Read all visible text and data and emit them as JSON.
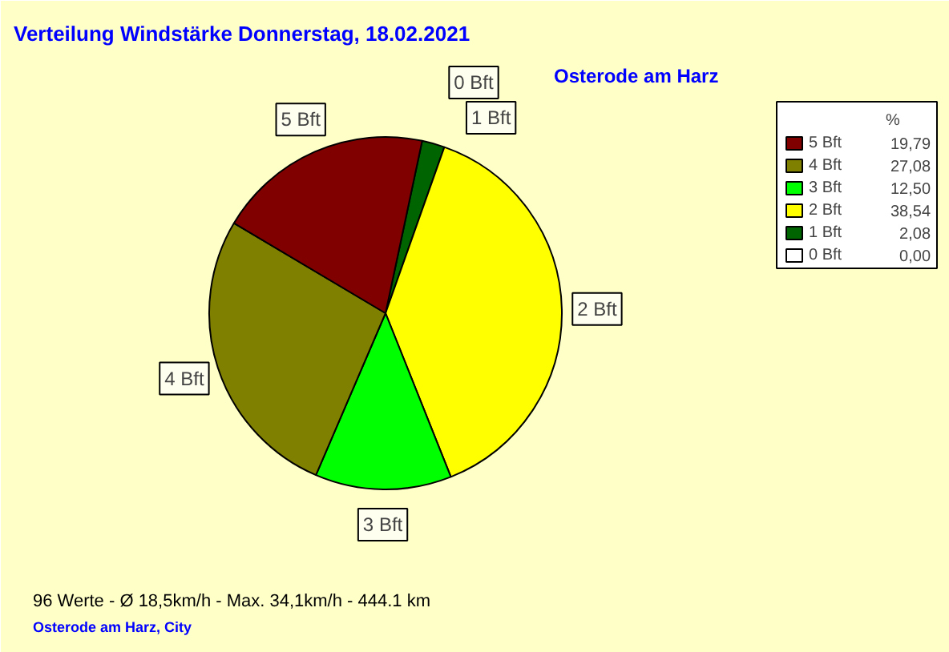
{
  "chart_data": {
    "type": "pie",
    "title": "Verteilung Windstärke  Donnerstag, 18.02.2021",
    "subtitle": "Osterode am Harz",
    "legend_title": "%",
    "legend": "right",
    "categories": [
      "0 Bft",
      "1 Bft",
      "2 Bft",
      "3 Bft",
      "4 Bft",
      "5 Bft"
    ],
    "values": [
      0.0,
      2.08,
      38.54,
      12.5,
      27.08,
      19.79
    ],
    "value_labels": [
      "0,00",
      "2,08",
      "38,54",
      "12,50",
      "27,08",
      "19,79"
    ],
    "colors": [
      "#ffffff",
      "#006400",
      "#ffff00",
      "#00ff00",
      "#808000",
      "#800000"
    ],
    "annotations": [
      "96 Werte   -   Ø 18,5km/h  -  Max. 34,1km/h   -   444.1 km",
      "Osterode am Harz, City"
    ]
  }
}
